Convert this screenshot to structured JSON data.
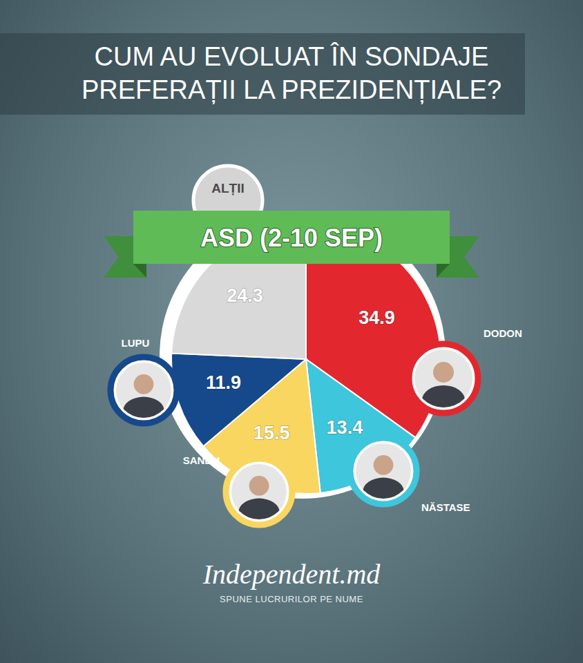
{
  "chart_data": {
    "type": "pie",
    "title": "CUM AU EVOLUAT ÎN SONDAJE PREFERAȚII LA PREZIDENȚIALE?",
    "subtitle": "ASD (2-10 SEP)",
    "categories": [
      "DODON",
      "NĂSTASE",
      "SANDU",
      "LUPU",
      "ALȚII"
    ],
    "values": [
      34.9,
      13.4,
      15.5,
      11.9,
      24.3
    ],
    "colors": [
      "#e2282e",
      "#3ec6dc",
      "#f8d660",
      "#16498c",
      "#d9d9d9"
    ],
    "data_labels": true,
    "annotations": [
      "Independent.md",
      "SPUNE LUCRURILOR PE NUME"
    ]
  }
}
